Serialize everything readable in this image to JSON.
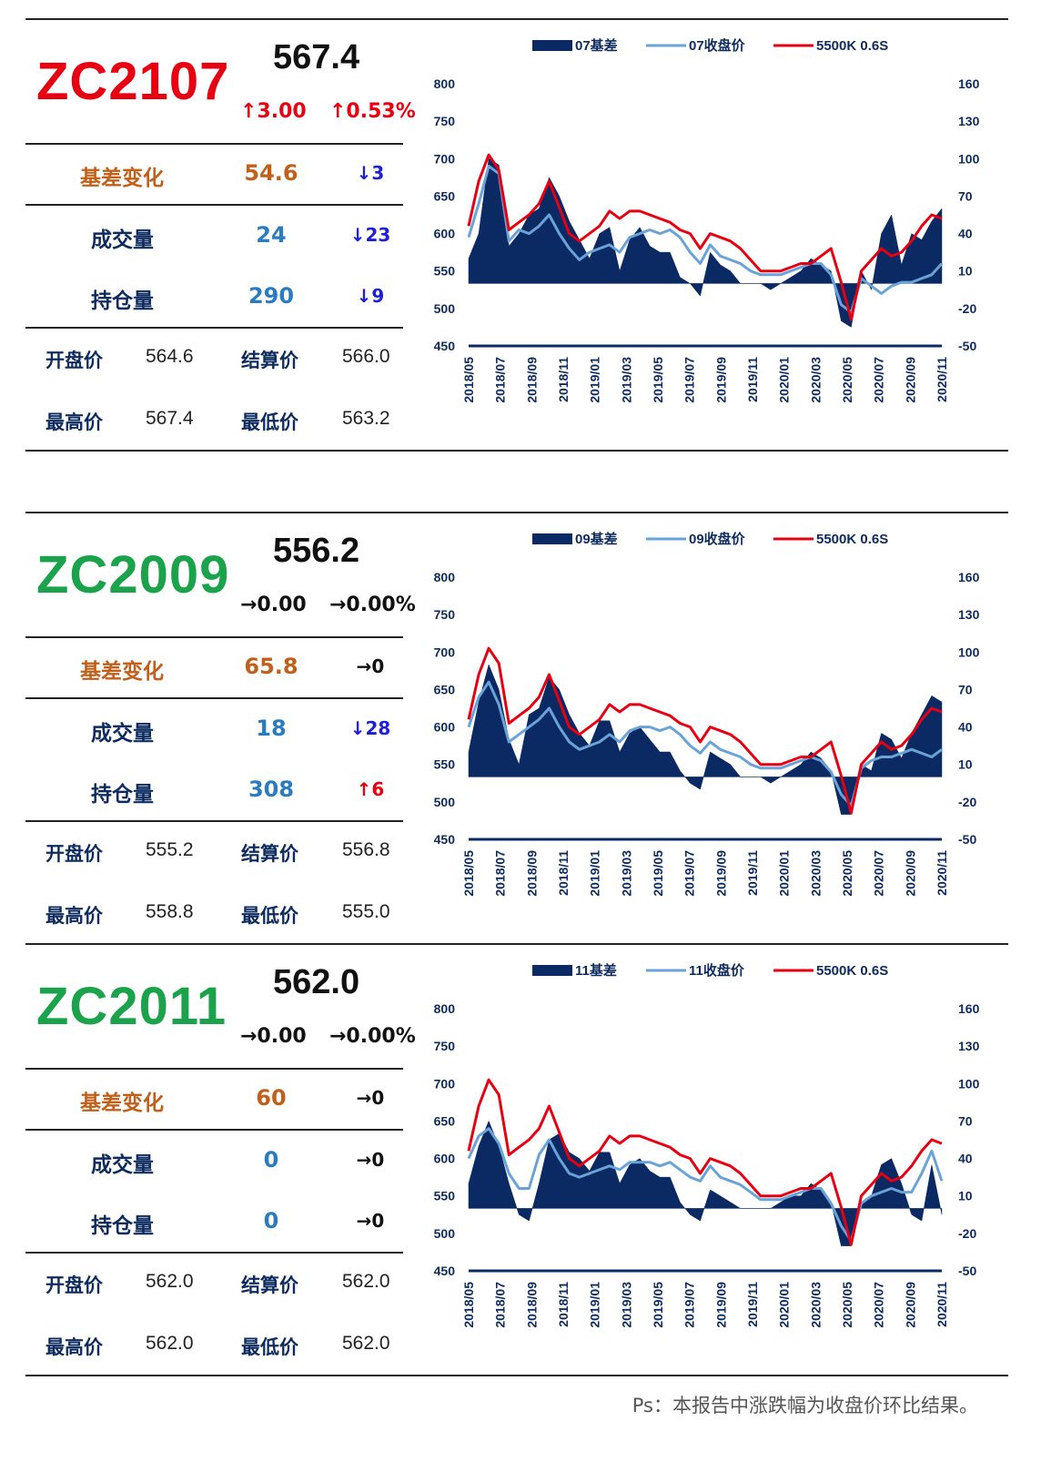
{
  "panels": [
    {
      "code": "ZC2107",
      "code_color": "#e60012",
      "price": "567.4",
      "chg": "↑3.00",
      "chg_pct": "↑0.53%",
      "chg_color": "#e60012",
      "basis_label": "基差变化",
      "basis_value": "54.6",
      "basis_delta": "↓3",
      "basis_delta_color": "#1f1fd6",
      "volume_label": "成交量",
      "volume_value": "24",
      "volume_delta": "↓23",
      "volume_delta_color": "#1f1fd6",
      "oi_label": "持仓量",
      "oi_value": "290",
      "oi_delta": "↓9",
      "oi_delta_color": "#1f1fd6",
      "open_label": "开盘价",
      "open": "564.6",
      "settle_label": "结算价",
      "settle": "566.0",
      "high_label": "最高价",
      "high": "567.4",
      "low_label": "最低价",
      "low": "563.2"
    },
    {
      "code": "ZC2009",
      "code_color": "#1aa34a",
      "price": "556.2",
      "chg": "→0.00",
      "chg_pct": "→0.00%",
      "chg_color": "#111111",
      "basis_label": "基差变化",
      "basis_value": "65.8",
      "basis_delta": "→0",
      "basis_delta_color": "#111111",
      "volume_label": "成交量",
      "volume_value": "18",
      "volume_delta": "↓28",
      "volume_delta_color": "#1f1fd6",
      "oi_label": "持仓量",
      "oi_value": "308",
      "oi_delta": "↑6",
      "oi_delta_color": "#e60012",
      "open_label": "开盘价",
      "open": "555.2",
      "settle_label": "结算价",
      "settle": "556.8",
      "high_label": "最高价",
      "high": "558.8",
      "low_label": "最低价",
      "low": "555.0"
    },
    {
      "code": "ZC2011",
      "code_color": "#1aa34a",
      "price": "562.0",
      "chg": "→0.00",
      "chg_pct": "→0.00%",
      "chg_color": "#111111",
      "basis_label": "基差变化",
      "basis_value": "60",
      "basis_delta": "→0",
      "basis_delta_color": "#111111",
      "volume_label": "成交量",
      "volume_value": "0",
      "volume_delta": "→0",
      "volume_delta_color": "#111111",
      "oi_label": "持仓量",
      "oi_value": "0",
      "oi_delta": "→0",
      "oi_delta_color": "#111111",
      "open_label": "开盘价",
      "open": "562.0",
      "settle_label": "结算价",
      "settle": "562.0",
      "high_label": "最高价",
      "high": "562.0",
      "low_label": "最低价",
      "low": "562.0"
    }
  ],
  "colors": {
    "label_orange": "#c0601a",
    "label_navy": "#0d2b5e",
    "value_blue": "#2b7bbf",
    "basis_navy": "#0b2a63",
    "close_blue": "#6aa3d8",
    "spot_red": "#e60012"
  },
  "footnote": "Ps：本报告中涨跌幅为收盘价环比结果。",
  "chart_data": [
    {
      "type": "line",
      "x_tick_labels": [
        "2018/05",
        "2018/07",
        "2018/09",
        "2018/11",
        "2019/01",
        "2019/03",
        "2019/05",
        "2019/07",
        "2019/09",
        "2019/11",
        "2020/01",
        "2020/03",
        "2020/05",
        "2020/07",
        "2020/09",
        "2020/11"
      ],
      "y_left": {
        "ticks": [
          "800",
          "750",
          "700",
          "650",
          "600",
          "550",
          "500",
          "450"
        ],
        "range": [
          450,
          800
        ]
      },
      "y_right": {
        "ticks": [
          "160",
          "130",
          "100",
          "70",
          "40",
          "10",
          "-20",
          "-50"
        ],
        "range": [
          -50,
          160
        ]
      },
      "legend": [
        "07基差",
        "07收盘价",
        "5500K 0.6S"
      ],
      "series": [
        {
          "name": "07基差",
          "kind": "area",
          "axis": "right",
          "values": [
            20,
            40,
            100,
            95,
            30,
            40,
            55,
            60,
            85,
            70,
            50,
            35,
            20,
            40,
            45,
            10,
            35,
            45,
            30,
            25,
            25,
            5,
            0,
            -10,
            25,
            15,
            10,
            0,
            0,
            0,
            -5,
            0,
            5,
            10,
            20,
            15,
            10,
            -30,
            -35,
            10,
            -5,
            40,
            55,
            15,
            40,
            35,
            50,
            60
          ]
        },
        {
          "name": "07收盘价",
          "kind": "line",
          "axis": "left",
          "values": [
            595,
            640,
            690,
            680,
            590,
            605,
            600,
            610,
            625,
            600,
            580,
            565,
            575,
            580,
            585,
            575,
            595,
            600,
            605,
            600,
            605,
            595,
            575,
            560,
            585,
            570,
            565,
            560,
            550,
            545,
            545,
            545,
            550,
            555,
            560,
            560,
            545,
            505,
            495,
            540,
            530,
            520,
            530,
            535,
            535,
            540,
            545,
            560
          ]
        },
        {
          "name": "5500K 0.6S",
          "kind": "line",
          "axis": "left",
          "values": [
            610,
            670,
            705,
            685,
            605,
            615,
            625,
            640,
            670,
            635,
            600,
            590,
            600,
            610,
            630,
            620,
            630,
            630,
            625,
            620,
            615,
            605,
            600,
            580,
            600,
            595,
            590,
            580,
            565,
            550,
            550,
            550,
            555,
            560,
            560,
            570,
            580,
            535,
            485,
            550,
            565,
            580,
            570,
            575,
            590,
            610,
            625,
            620
          ]
        }
      ]
    },
    {
      "type": "line",
      "x_tick_labels": [
        "2018/05",
        "2018/07",
        "2018/09",
        "2018/11",
        "2019/01",
        "2019/03",
        "2019/05",
        "2019/07",
        "2019/09",
        "2019/11",
        "2020/01",
        "2020/03",
        "2020/05",
        "2020/07",
        "2020/09",
        "2020/11"
      ],
      "y_left": {
        "ticks": [
          "800",
          "750",
          "700",
          "650",
          "600",
          "550",
          "500",
          "450"
        ],
        "range": [
          450,
          800
        ]
      },
      "y_right": {
        "ticks": [
          "160",
          "130",
          "100",
          "70",
          "40",
          "10",
          "-20",
          "-50"
        ],
        "range": [
          -50,
          160
        ]
      },
      "legend": [
        "09基差",
        "09收盘价",
        "5500K 0.6S"
      ],
      "series": [
        {
          "name": "09基差",
          "kind": "area",
          "axis": "right",
          "values": [
            20,
            60,
            90,
            70,
            30,
            10,
            50,
            55,
            80,
            70,
            50,
            35,
            25,
            45,
            45,
            20,
            35,
            40,
            30,
            20,
            20,
            5,
            -5,
            -10,
            20,
            15,
            10,
            0,
            0,
            0,
            -5,
            0,
            5,
            10,
            20,
            15,
            5,
            -30,
            -30,
            10,
            5,
            35,
            30,
            15,
            35,
            50,
            65,
            60
          ]
        },
        {
          "name": "09收盘价",
          "kind": "line",
          "axis": "left",
          "values": [
            600,
            640,
            660,
            630,
            580,
            590,
            600,
            610,
            625,
            600,
            580,
            570,
            575,
            580,
            590,
            580,
            595,
            600,
            600,
            595,
            600,
            590,
            575,
            565,
            580,
            570,
            565,
            560,
            550,
            545,
            545,
            545,
            550,
            555,
            560,
            555,
            540,
            510,
            495,
            545,
            555,
            560,
            560,
            565,
            570,
            565,
            560,
            570
          ]
        },
        {
          "name": "5500K 0.6S",
          "kind": "line",
          "axis": "left",
          "values": [
            610,
            670,
            705,
            685,
            605,
            615,
            625,
            640,
            670,
            635,
            600,
            590,
            600,
            610,
            630,
            620,
            630,
            630,
            625,
            620,
            615,
            605,
            600,
            580,
            600,
            595,
            590,
            580,
            565,
            550,
            550,
            550,
            555,
            560,
            560,
            570,
            580,
            535,
            485,
            550,
            565,
            580,
            570,
            575,
            590,
            610,
            625,
            620
          ]
        }
      ]
    },
    {
      "type": "line",
      "x_tick_labels": [
        "2018/05",
        "2018/07",
        "2018/09",
        "2018/11",
        "2019/01",
        "2019/03",
        "2019/05",
        "2019/07",
        "2019/09",
        "2019/11",
        "2020/01",
        "2020/03",
        "2020/05",
        "2020/07",
        "2020/09",
        "2020/11"
      ],
      "y_left": {
        "ticks": [
          "800",
          "750",
          "700",
          "650",
          "600",
          "550",
          "500",
          "450"
        ],
        "range": [
          450,
          800
        ]
      },
      "y_right": {
        "ticks": [
          "160",
          "130",
          "100",
          "70",
          "40",
          "10",
          "-20",
          "-50"
        ],
        "range": [
          -50,
          160
        ]
      },
      "legend": [
        "11基差",
        "11收盘价",
        "5500K 0.6S"
      ],
      "series": [
        {
          "name": "11基差",
          "kind": "area",
          "axis": "right",
          "values": [
            20,
            50,
            70,
            50,
            20,
            -5,
            -10,
            20,
            55,
            60,
            45,
            40,
            30,
            45,
            45,
            20,
            35,
            40,
            30,
            25,
            25,
            5,
            -5,
            -10,
            15,
            10,
            5,
            0,
            0,
            0,
            0,
            5,
            10,
            10,
            20,
            15,
            5,
            -30,
            -30,
            5,
            10,
            35,
            40,
            20,
            -5,
            -10,
            35,
            -5
          ]
        },
        {
          "name": "11收盘价",
          "kind": "line",
          "axis": "left",
          "values": [
            600,
            630,
            640,
            620,
            580,
            560,
            560,
            605,
            625,
            600,
            580,
            575,
            580,
            585,
            590,
            585,
            595,
            595,
            595,
            590,
            595,
            585,
            575,
            570,
            590,
            575,
            570,
            565,
            555,
            545,
            545,
            545,
            550,
            555,
            560,
            560,
            540,
            510,
            490,
            540,
            550,
            555,
            560,
            555,
            555,
            580,
            610,
            570
          ]
        },
        {
          "name": "5500K 0.6S",
          "kind": "line",
          "axis": "left",
          "values": [
            610,
            670,
            705,
            685,
            605,
            615,
            625,
            640,
            670,
            635,
            600,
            590,
            600,
            610,
            630,
            620,
            630,
            630,
            625,
            620,
            615,
            605,
            600,
            580,
            600,
            595,
            590,
            580,
            565,
            550,
            550,
            550,
            555,
            560,
            560,
            570,
            580,
            535,
            485,
            550,
            565,
            580,
            570,
            575,
            590,
            610,
            625,
            620
          ]
        }
      ]
    }
  ]
}
